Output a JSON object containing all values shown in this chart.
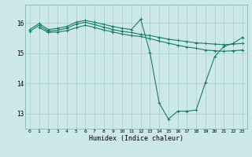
{
  "xlabel": "Humidex (Indice chaleur)",
  "bg_color": "#cce8e8",
  "line_color": "#1a7a6e",
  "grid_color": "#aacccc",
  "xlim": [
    -0.5,
    23.5
  ],
  "ylim": [
    12.5,
    16.6
  ],
  "yticks": [
    13,
    14,
    15,
    16
  ],
  "xticks": [
    0,
    1,
    2,
    3,
    4,
    5,
    6,
    7,
    8,
    9,
    10,
    11,
    12,
    13,
    14,
    15,
    16,
    17,
    18,
    19,
    20,
    21,
    22,
    23
  ],
  "line1_x": [
    0,
    1,
    2,
    3,
    4,
    5,
    6,
    7,
    8,
    9,
    10,
    11,
    12,
    13,
    14,
    15,
    16,
    17,
    18,
    19,
    20,
    21,
    22,
    23
  ],
  "line1_y": [
    15.78,
    15.98,
    15.78,
    15.82,
    15.88,
    16.02,
    16.08,
    16.02,
    15.95,
    15.88,
    15.82,
    15.78,
    16.12,
    15.02,
    13.35,
    12.82,
    13.08,
    13.08,
    13.12,
    14.02,
    14.88,
    15.22,
    15.32,
    15.52
  ],
  "line2_x": [
    0,
    1,
    2,
    3,
    4,
    5,
    6,
    7,
    8,
    9,
    10,
    11,
    12,
    13,
    14,
    15,
    16,
    17,
    18,
    19,
    20,
    21,
    22,
    23
  ],
  "line2_y": [
    15.72,
    15.92,
    15.72,
    15.76,
    15.82,
    15.96,
    16.02,
    15.94,
    15.86,
    15.78,
    15.72,
    15.68,
    15.62,
    15.58,
    15.52,
    15.46,
    15.42,
    15.38,
    15.34,
    15.32,
    15.3,
    15.28,
    15.3,
    15.32
  ],
  "line3_x": [
    1,
    2,
    3,
    4,
    5,
    6,
    7,
    8,
    9,
    10,
    11,
    12,
    13,
    14,
    15,
    16,
    17,
    18,
    19,
    20,
    21,
    22,
    23
  ],
  "line3_y": [
    15.85,
    15.68,
    15.7,
    15.74,
    15.84,
    15.92,
    15.85,
    15.76,
    15.7,
    15.63,
    15.58,
    15.55,
    15.48,
    15.4,
    15.33,
    15.26,
    15.2,
    15.16,
    15.1,
    15.08,
    15.06,
    15.08,
    15.1
  ]
}
